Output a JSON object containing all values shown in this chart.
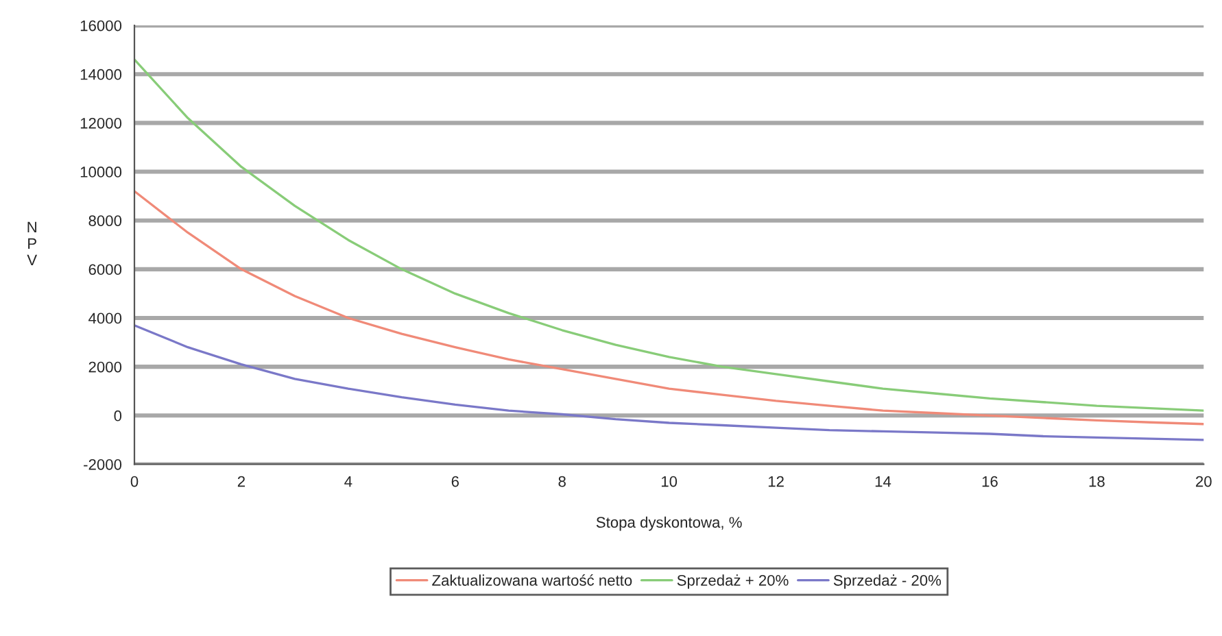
{
  "chart_data": {
    "type": "line",
    "xlabel": "Stopa dyskontowa, %",
    "ylabel": "N\nP\nV",
    "x": [
      0,
      1,
      2,
      3,
      4,
      5,
      6,
      7,
      8,
      9,
      10,
      11,
      12,
      13,
      14,
      15,
      16,
      17,
      18,
      19,
      20
    ],
    "series": [
      {
        "name": "Zaktualizowana wartość netto",
        "color": "#f08a78",
        "values": [
          9200,
          7500,
          6000,
          4900,
          4000,
          3350,
          2800,
          2300,
          1900,
          1500,
          1100,
          850,
          600,
          400,
          200,
          100,
          0,
          -100,
          -200,
          -280,
          -350
        ]
      },
      {
        "name": "Sprzedaż + 20%",
        "color": "#88cc78",
        "values": [
          14600,
          12200,
          10200,
          8600,
          7200,
          6000,
          5000,
          4200,
          3500,
          2900,
          2400,
          2000,
          1700,
          1400,
          1100,
          900,
          700,
          550,
          400,
          300,
          200
        ]
      },
      {
        "name": "Sprzedaż - 20%",
        "color": "#7a78c8",
        "values": [
          3700,
          2800,
          2100,
          1500,
          1100,
          750,
          450,
          200,
          50,
          -150,
          -300,
          -400,
          -500,
          -600,
          -650,
          -700,
          -750,
          -850,
          -900,
          -950,
          -1000
        ]
      }
    ],
    "xlim": [
      0,
      20
    ],
    "xticks": [
      0,
      2,
      4,
      6,
      8,
      10,
      12,
      14,
      16,
      18,
      20
    ],
    "ylim": [
      -2000,
      16000
    ],
    "yticks": [
      -2000,
      0,
      2000,
      4000,
      6000,
      8000,
      10000,
      12000,
      14000,
      16000
    ],
    "grid": "y",
    "legend": "bottom",
    "marker": "none",
    "line_style": "solid"
  }
}
